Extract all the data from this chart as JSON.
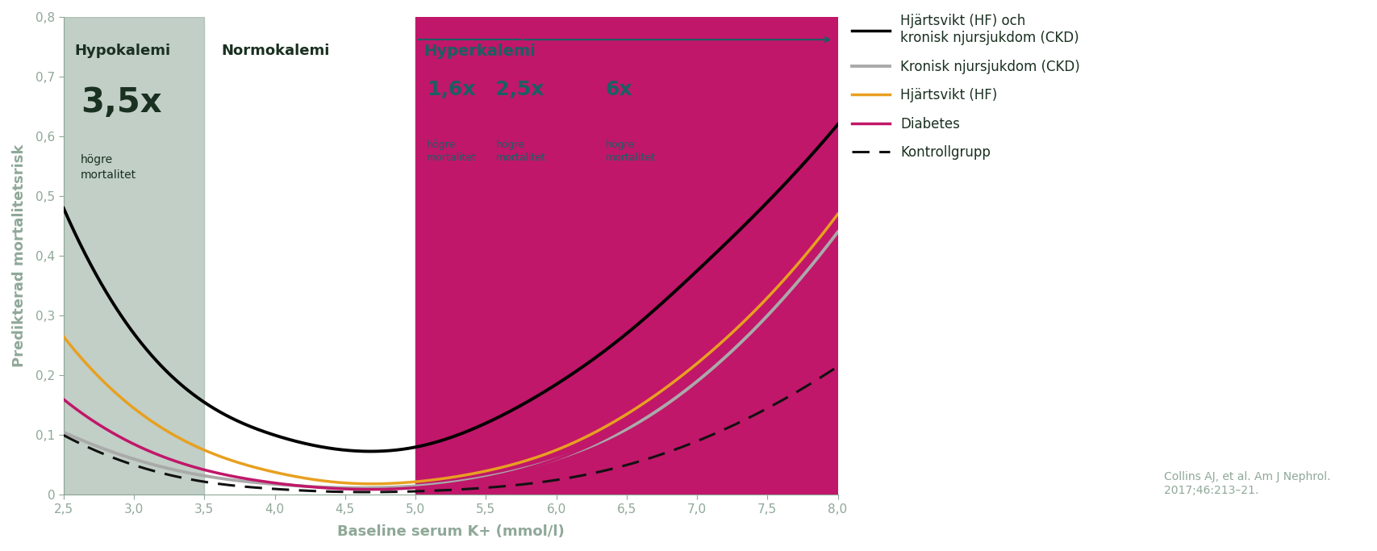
{
  "xlabel": "Baseline serum K+ (mmol/l)",
  "ylabel": "Predikterad mortalitetsrisk",
  "xlim": [
    2.5,
    8.0
  ],
  "ylim": [
    0.0,
    0.8
  ],
  "yticks": [
    0,
    0.1,
    0.2,
    0.3,
    0.4,
    0.5,
    0.6,
    0.7,
    0.8
  ],
  "ytick_labels": [
    "0",
    "0,1",
    "0,2",
    "0,3",
    "0,4",
    "0,5",
    "0,6",
    "0,7",
    "0,8"
  ],
  "xticks": [
    2.5,
    3.0,
    3.5,
    4.0,
    4.5,
    5.0,
    5.5,
    6.0,
    6.5,
    7.0,
    7.5,
    8.0
  ],
  "xtick_labels": [
    "2,5",
    "3,0",
    "3,5",
    "4,0",
    "4,5",
    "5,0",
    "5,5",
    "6,0",
    "6,5",
    "7,0",
    "7,5",
    "8,0"
  ],
  "hypo_region": [
    2.5,
    3.5
  ],
  "hypo_color": "#8fa898",
  "hyper_region": [
    5.0,
    8.0
  ],
  "hyper_color": "#c0176a",
  "hypo_label": "Hypokalemi",
  "normo_label": "Normokalemi",
  "hyper_label": "Hyperkalemi",
  "dark_label_color": "#1a3020",
  "teal_color": "#1a6060",
  "tick_color": "#8fa898",
  "citation": "Collins AJ, et al. Am J Nephrol.\n2017;46:213–21.",
  "citation_color": "#8fa898",
  "line_hf_ckd_color": "#000000",
  "line_ckd_color": "#aaaaaa",
  "line_hf_color": "#e8a020",
  "line_diabetes_color": "#c0176a",
  "line_control_color": "#111111",
  "hf_ckd_knots_x": [
    2.5,
    3.0,
    3.5,
    4.0,
    4.5,
    5.0,
    5.5,
    6.0,
    6.5,
    7.0,
    7.5,
    8.0
  ],
  "hf_ckd_knots_y": [
    0.48,
    0.27,
    0.155,
    0.1,
    0.075,
    0.08,
    0.12,
    0.185,
    0.27,
    0.375,
    0.49,
    0.62
  ],
  "ckd_knots_x": [
    2.5,
    3.0,
    3.5,
    4.0,
    4.5,
    5.0,
    5.5,
    6.0,
    6.5,
    7.0,
    7.5,
    8.0
  ],
  "ckd_knots_y": [
    0.105,
    0.06,
    0.032,
    0.018,
    0.012,
    0.015,
    0.03,
    0.06,
    0.11,
    0.19,
    0.3,
    0.44
  ],
  "hf_knots_x": [
    2.5,
    3.0,
    3.5,
    4.0,
    4.5,
    5.0,
    5.5,
    6.0,
    6.5,
    7.0,
    7.5,
    8.0
  ],
  "hf_knots_y": [
    0.265,
    0.145,
    0.075,
    0.038,
    0.02,
    0.022,
    0.04,
    0.075,
    0.135,
    0.22,
    0.33,
    0.47
  ],
  "diab_knots_x": [
    2.5,
    3.0,
    3.5,
    4.0,
    4.5,
    5.0,
    5.5,
    6.0,
    6.5,
    7.0,
    7.5,
    8.0
  ],
  "diab_knots_y": [
    0.16,
    0.085,
    0.042,
    0.02,
    0.01,
    0.012,
    0.028,
    0.06,
    0.115,
    0.2,
    0.315,
    0.455
  ],
  "ctrl_knots_x": [
    2.5,
    3.0,
    3.5,
    4.0,
    4.5,
    5.0,
    5.5,
    6.0,
    6.5,
    7.0,
    7.5,
    8.0
  ],
  "ctrl_knots_y": [
    0.1,
    0.05,
    0.022,
    0.01,
    0.005,
    0.006,
    0.012,
    0.025,
    0.05,
    0.09,
    0.145,
    0.215
  ]
}
